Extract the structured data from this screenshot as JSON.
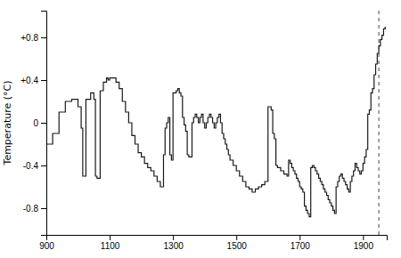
{
  "chart_data": {
    "type": "step",
    "ylabel": "Temperature (°C)",
    "xlim": [
      900,
      1975
    ],
    "ylim": [
      -1.05,
      1.05
    ],
    "xticks": [
      900,
      1100,
      1300,
      1500,
      1700,
      1900
    ],
    "yticks": [
      -0.8,
      -0.4,
      0,
      {
        "value": 0.4,
        "label": "+0.4"
      },
      {
        "value": 0.8,
        "label": "+0.8"
      }
    ],
    "grid": false,
    "color": "#1a1a1a",
    "x": [
      900,
      920,
      940,
      960,
      980,
      1000,
      1010,
      1015,
      1025,
      1040,
      1050,
      1055,
      1060,
      1070,
      1080,
      1090,
      1095,
      1100,
      1110,
      1120,
      1130,
      1140,
      1150,
      1160,
      1170,
      1180,
      1190,
      1200,
      1210,
      1220,
      1230,
      1240,
      1250,
      1260,
      1270,
      1275,
      1280,
      1285,
      1290,
      1295,
      1300,
      1310,
      1315,
      1320,
      1325,
      1330,
      1335,
      1340,
      1345,
      1350,
      1360,
      1365,
      1370,
      1375,
      1380,
      1385,
      1390,
      1395,
      1400,
      1405,
      1410,
      1415,
      1420,
      1425,
      1430,
      1435,
      1440,
      1445,
      1450,
      1455,
      1460,
      1465,
      1470,
      1475,
      1480,
      1490,
      1500,
      1510,
      1520,
      1530,
      1540,
      1550,
      1560,
      1570,
      1580,
      1590,
      1600,
      1610,
      1615,
      1620,
      1625,
      1630,
      1640,
      1650,
      1660,
      1665,
      1670,
      1675,
      1680,
      1685,
      1690,
      1695,
      1700,
      1705,
      1710,
      1715,
      1720,
      1725,
      1730,
      1735,
      1740,
      1745,
      1750,
      1755,
      1760,
      1765,
      1770,
      1775,
      1780,
      1785,
      1790,
      1795,
      1800,
      1805,
      1810,
      1815,
      1820,
      1825,
      1830,
      1835,
      1840,
      1845,
      1850,
      1855,
      1860,
      1865,
      1870,
      1875,
      1880,
      1885,
      1890,
      1895,
      1900,
      1905,
      1910,
      1915,
      1920,
      1925,
      1930,
      1935,
      1940,
      1945,
      1950,
      1955,
      1960,
      1965,
      1970
    ],
    "values": [
      -0.2,
      -0.1,
      0.1,
      0.2,
      0.22,
      0.15,
      -0.05,
      -0.5,
      0.22,
      0.28,
      0.22,
      -0.5,
      -0.52,
      0.3,
      0.38,
      0.42,
      0.4,
      0.42,
      0.42,
      0.38,
      0.32,
      0.2,
      0.1,
      0.0,
      -0.12,
      -0.2,
      -0.28,
      -0.32,
      -0.38,
      -0.42,
      -0.45,
      -0.5,
      -0.55,
      -0.6,
      -0.3,
      -0.05,
      0.0,
      0.05,
      -0.3,
      -0.35,
      0.28,
      0.3,
      0.32,
      0.28,
      0.25,
      0.05,
      -0.02,
      -0.08,
      -0.3,
      -0.32,
      0.0,
      0.05,
      0.08,
      0.05,
      0.0,
      0.05,
      0.08,
      0.0,
      -0.05,
      0.0,
      0.05,
      0.08,
      0.05,
      0.0,
      -0.05,
      0.0,
      0.05,
      0.08,
      0.0,
      -0.1,
      -0.15,
      -0.2,
      -0.25,
      -0.3,
      -0.35,
      -0.4,
      -0.45,
      -0.5,
      -0.55,
      -0.6,
      -0.62,
      -0.65,
      -0.62,
      -0.6,
      -0.58,
      -0.55,
      0.15,
      0.12,
      -0.1,
      -0.15,
      -0.4,
      -0.42,
      -0.45,
      -0.48,
      -0.5,
      -0.35,
      -0.38,
      -0.42,
      -0.45,
      -0.48,
      -0.52,
      -0.55,
      -0.6,
      -0.62,
      -0.65,
      -0.78,
      -0.82,
      -0.85,
      -0.88,
      -0.42,
      -0.4,
      -0.42,
      -0.45,
      -0.48,
      -0.52,
      -0.55,
      -0.58,
      -0.62,
      -0.65,
      -0.68,
      -0.72,
      -0.75,
      -0.78,
      -0.82,
      -0.85,
      -0.6,
      -0.55,
      -0.5,
      -0.48,
      -0.52,
      -0.55,
      -0.58,
      -0.62,
      -0.65,
      -0.55,
      -0.5,
      -0.45,
      -0.38,
      -0.42,
      -0.45,
      -0.48,
      -0.45,
      -0.38,
      -0.32,
      -0.25,
      0.08,
      0.12,
      0.28,
      0.32,
      0.45,
      0.55,
      0.65,
      0.72,
      0.78,
      0.82,
      0.88,
      0.9
    ],
    "vlines": [
      {
        "x": 1950,
        "line_style": "dashed",
        "color": "#444444"
      }
    ]
  }
}
